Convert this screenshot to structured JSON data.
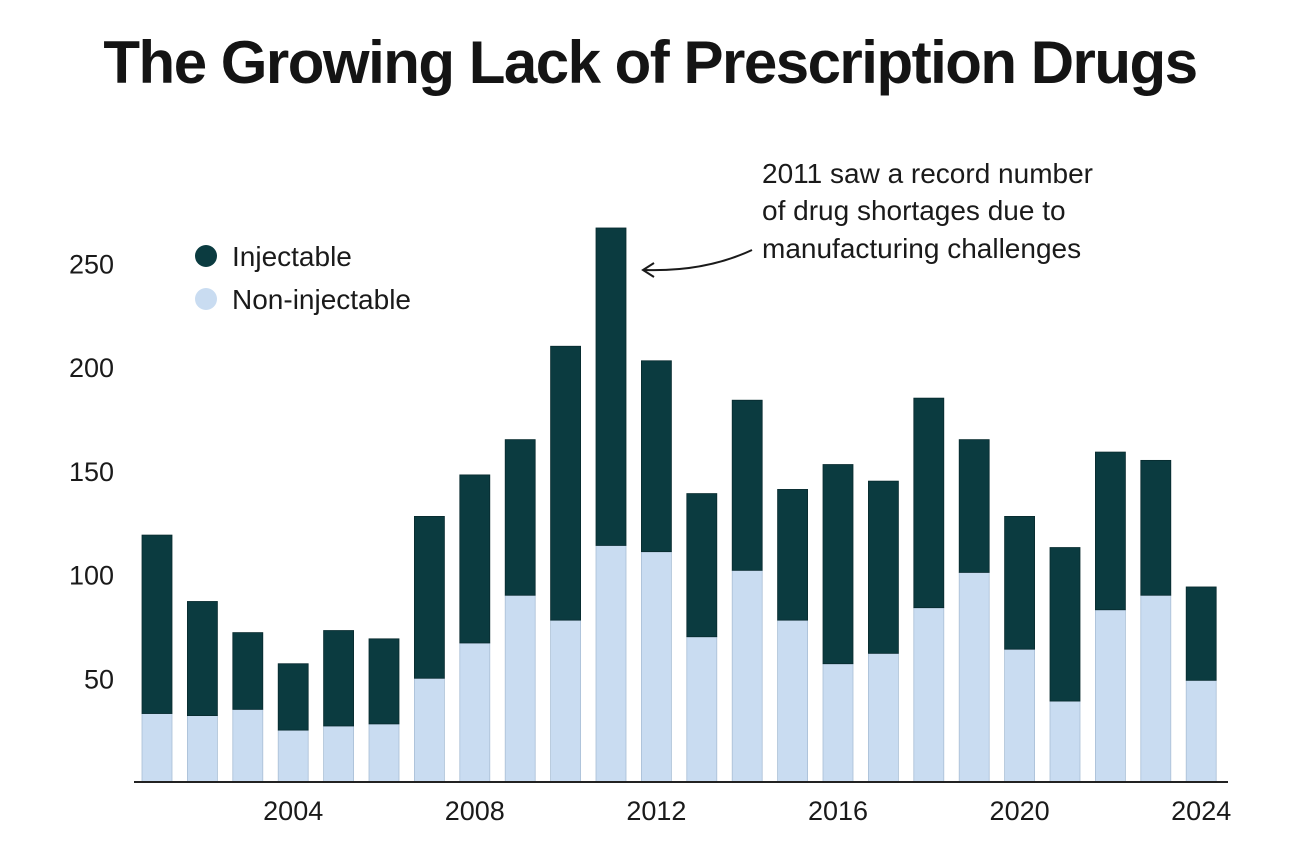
{
  "chart_data": {
    "type": "bar",
    "stacked": true,
    "title": "The Growing Lack of Prescription Drugs",
    "xlabel": "",
    "ylabel": "",
    "categories": [
      2001,
      2002,
      2003,
      2004,
      2005,
      2006,
      2007,
      2008,
      2009,
      2010,
      2011,
      2012,
      2013,
      2014,
      2015,
      2016,
      2017,
      2018,
      2019,
      2020,
      2021,
      2022,
      2023,
      2024
    ],
    "x_tick_labels": [
      "2004",
      "2008",
      "2012",
      "2016",
      "2020",
      "2024"
    ],
    "x_tick_years": [
      2004,
      2008,
      2012,
      2016,
      2020,
      2024
    ],
    "y_ticks": [
      50,
      100,
      150,
      200,
      250
    ],
    "ylim": [
      0,
      280
    ],
    "series": [
      {
        "name": "Non-injectable",
        "color": "#c9dcf1",
        "values": [
          33,
          32,
          35,
          25,
          27,
          28,
          50,
          67,
          90,
          78,
          114,
          111,
          70,
          102,
          78,
          57,
          62,
          84,
          101,
          64,
          39,
          83,
          90,
          49
        ]
      },
      {
        "name": "Injectable",
        "color": "#0b3b40",
        "values": [
          86,
          55,
          37,
          32,
          46,
          41,
          78,
          81,
          75,
          132,
          153,
          92,
          69,
          82,
          63,
          96,
          83,
          101,
          64,
          64,
          74,
          76,
          65,
          45
        ]
      }
    ],
    "legend": {
      "position": "top-left",
      "entries": [
        {
          "label": "Injectable",
          "color": "#0b3b40"
        },
        {
          "label": "Non-injectable",
          "color": "#c9dcf1"
        }
      ]
    },
    "annotation": {
      "lines": [
        "2011 saw a record number",
        "of drug shortages due to",
        "manufacturing challenges"
      ],
      "target_year": 2011
    },
    "grid": false
  }
}
